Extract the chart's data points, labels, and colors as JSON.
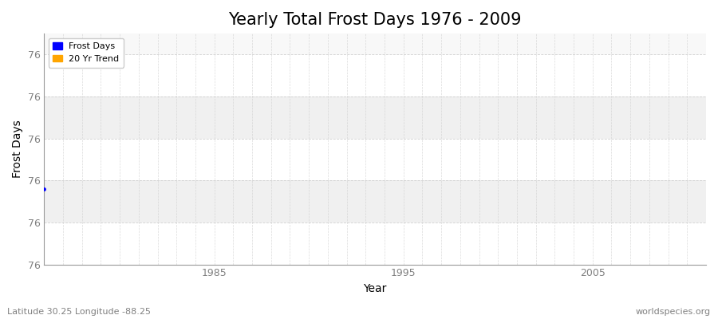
{
  "title": "Yearly Total Frost Days 1976 - 2009",
  "xlabel": "Year",
  "ylabel": "Frost Days",
  "xlim": [
    1976,
    2011
  ],
  "ylim": [
    75.6,
    76.15
  ],
  "ytick_positions": [
    75.6,
    75.7,
    75.8,
    75.9,
    76.0,
    76.1
  ],
  "ytick_labels": [
    "76",
    "76",
    "76",
    "76",
    "76",
    "76"
  ],
  "xticks": [
    1985,
    1995,
    2005
  ],
  "frost_days_x": [
    1976
  ],
  "frost_days_y": [
    75.78
  ],
  "frost_color": "#0000ff",
  "trend_color": "#ffa500",
  "fig_bg_color": "#ffffff",
  "plot_bg_color": "#f8f8f8",
  "grid_color": "#cccccc",
  "axis_color": "#999999",
  "tick_color": "#808080",
  "title_fontsize": 15,
  "label_fontsize": 10,
  "tick_fontsize": 9,
  "legend_labels": [
    "Frost Days",
    "20 Yr Trend"
  ],
  "subtitle": "Latitude 30.25 Longitude -88.25",
  "watermark": "worldspecies.org",
  "band_color_1": "#f0f0f0",
  "band_color_2": "#ffffff"
}
